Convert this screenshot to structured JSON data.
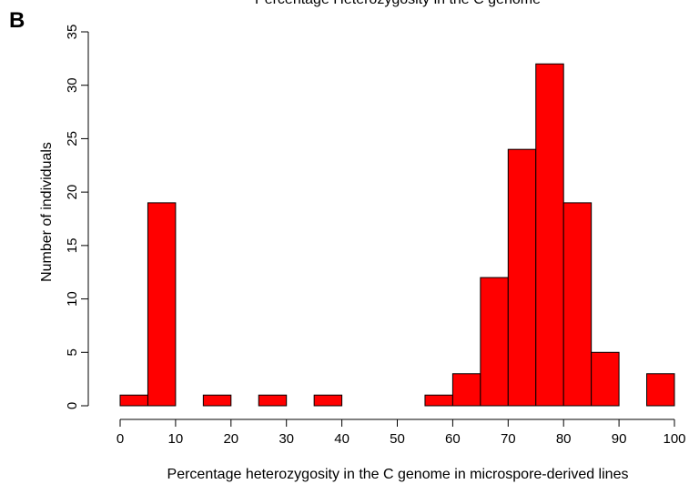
{
  "panel_label": "B",
  "chart_data": {
    "type": "bar",
    "title": "Percentage Heterozygosity in the C genome",
    "xlabel": "Percentage heterozygosity in the C genome in microspore-derived lines",
    "ylabel": "Number of individuals",
    "xlim": [
      0,
      100
    ],
    "ylim": [
      0,
      35
    ],
    "xticks": [
      0,
      10,
      20,
      30,
      40,
      50,
      60,
      70,
      80,
      90,
      100
    ],
    "yticks": [
      0,
      5,
      10,
      15,
      20,
      25,
      30,
      35
    ],
    "bin_width": 5,
    "bins": [
      0,
      5,
      10,
      15,
      20,
      25,
      30,
      35,
      40,
      45,
      50,
      55,
      60,
      65,
      70,
      75,
      80,
      85,
      90,
      95
    ],
    "values": [
      1,
      19,
      0,
      1,
      0,
      1,
      0,
      1,
      0,
      0,
      0,
      1,
      3,
      12,
      24,
      32,
      19,
      5,
      0,
      3
    ],
    "bar_fill": "#ff0000",
    "bar_stroke": "#000000",
    "grid": false
  }
}
